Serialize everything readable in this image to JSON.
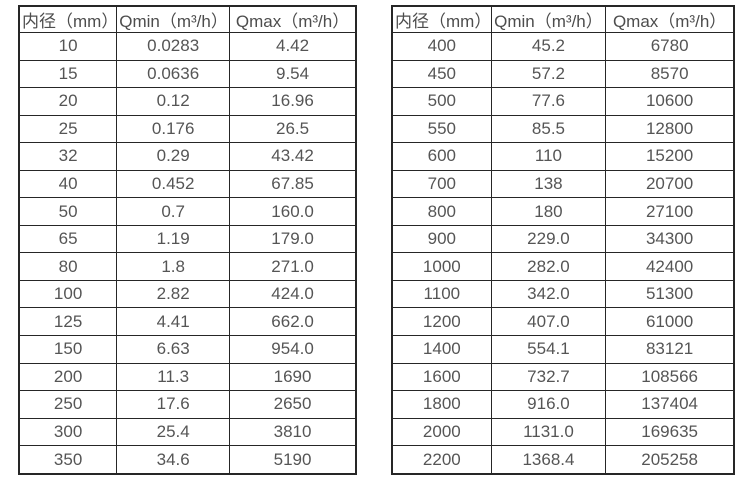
{
  "page": {
    "background_color": "#ffffff",
    "text_color": "#555555",
    "border_color": "#262626"
  },
  "tables": [
    {
      "name": "flow-table-small-diameters",
      "headers": [
        "内径（mm）",
        "Qmin（m³/h）",
        "Qmax（m³/h）"
      ],
      "rows": [
        [
          "10",
          "0.0283",
          "4.42"
        ],
        [
          "15",
          "0.0636",
          "9.54"
        ],
        [
          "20",
          "0.12",
          "16.96"
        ],
        [
          "25",
          "0.176",
          "26.5"
        ],
        [
          "32",
          "0.29",
          "43.42"
        ],
        [
          "40",
          "0.452",
          "67.85"
        ],
        [
          "50",
          "0.7",
          "160.0"
        ],
        [
          "65",
          "1.19",
          "179.0"
        ],
        [
          "80",
          "1.8",
          "271.0"
        ],
        [
          "100",
          "2.82",
          "424.0"
        ],
        [
          "125",
          "4.41",
          "662.0"
        ],
        [
          "150",
          "6.63",
          "954.0"
        ],
        [
          "200",
          "11.3",
          "1690"
        ],
        [
          "250",
          "17.6",
          "2650"
        ],
        [
          "300",
          "25.4",
          "3810"
        ],
        [
          "350",
          "34.6",
          "5190"
        ]
      ]
    },
    {
      "name": "flow-table-large-diameters",
      "headers": [
        "内径（mm）",
        "Qmin（m³/h）",
        "Qmax（m³/h）"
      ],
      "rows": [
        [
          "400",
          "45.2",
          "6780"
        ],
        [
          "450",
          "57.2",
          "8570"
        ],
        [
          "500",
          "77.6",
          "10600"
        ],
        [
          "550",
          "85.5",
          "12800"
        ],
        [
          "600",
          "110",
          "15200"
        ],
        [
          "700",
          "138",
          "20700"
        ],
        [
          "800",
          "180",
          "27100"
        ],
        [
          "900",
          "229.0",
          "34300"
        ],
        [
          "1000",
          "282.0",
          "42400"
        ],
        [
          "1100",
          "342.0",
          "51300"
        ],
        [
          "1200",
          "407.0",
          "61000"
        ],
        [
          "1400",
          "554.1",
          "83121"
        ],
        [
          "1600",
          "732.7",
          "108566"
        ],
        [
          "1800",
          "916.0",
          "137404"
        ],
        [
          "2000",
          "1131.0",
          "169635"
        ],
        [
          "2200",
          "1368.4",
          "205258"
        ]
      ]
    }
  ]
}
